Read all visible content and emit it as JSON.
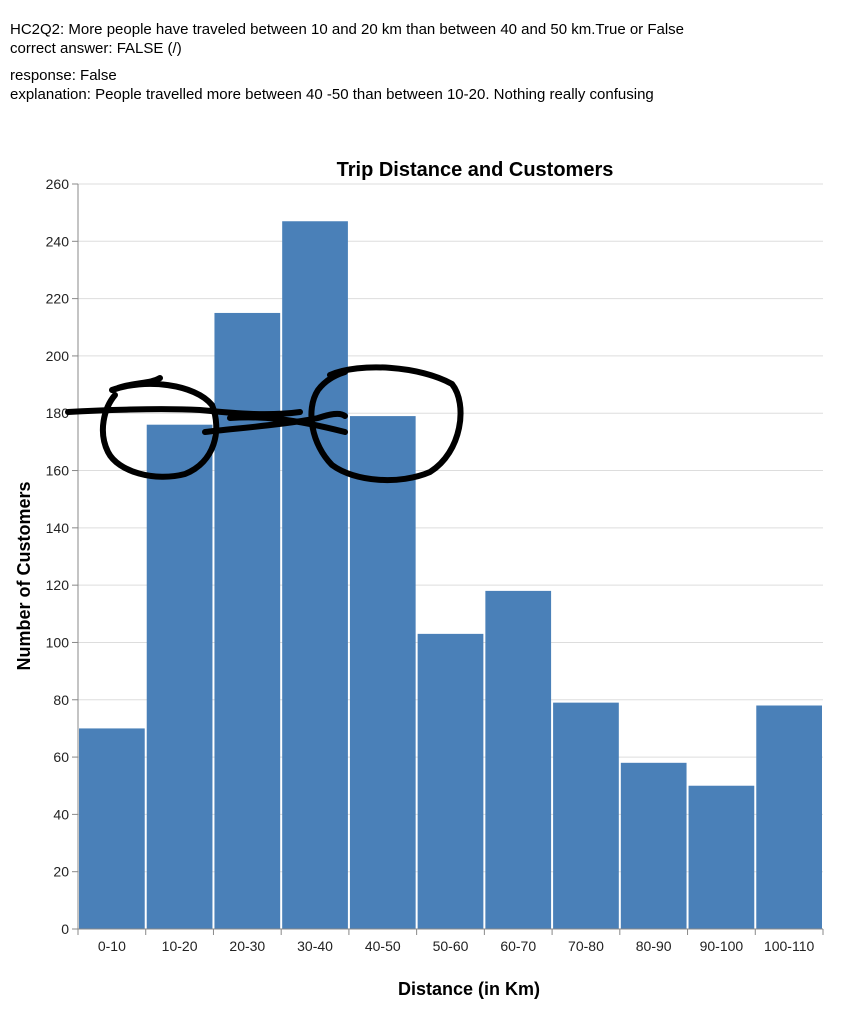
{
  "question": {
    "line1": "HC2Q2: More people have traveled between 10 and 20 km than between 40 and 50 km.True or False",
    "line2": "correct answer: FALSE (/)",
    "line3": "response: False",
    "line4": "explanation: People travelled more between 40 -50 than between 10-20. Nothing really confusing"
  },
  "colors": {
    "bar": "#4a80b8",
    "grid": "#dddddd",
    "axis": "#888888",
    "ink": "#000000"
  },
  "chart_data": {
    "type": "bar",
    "title": "Trip Distance and Customers",
    "xlabel": "Distance (in Km)",
    "ylabel": "Number of Customers",
    "categories": [
      "0-10",
      "10-20",
      "20-30",
      "30-40",
      "40-50",
      "50-60",
      "60-70",
      "70-80",
      "80-90",
      "90-100",
      "100-110"
    ],
    "values": [
      70,
      176,
      215,
      247,
      179,
      103,
      118,
      79,
      58,
      50,
      78
    ],
    "ylim": [
      0,
      260
    ],
    "yticks": [
      0,
      20,
      40,
      60,
      80,
      100,
      120,
      140,
      160,
      180,
      200,
      220,
      240,
      260
    ],
    "grid": true,
    "annotations": [
      "hand-drawn circle around 10-20 bar near 180",
      "hand-drawn circle around 40-50 bar near 180",
      "hand-drawn horizontal line at 180"
    ]
  }
}
